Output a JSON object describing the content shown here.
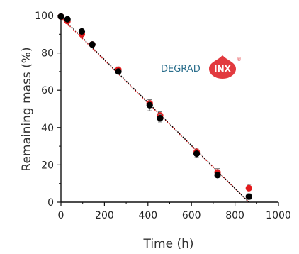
{
  "chart_data": {
    "type": "scatter",
    "xlabel": "Time (h)",
    "ylabel": "Remaining mass (%)",
    "xlim": [
      0,
      1000
    ],
    "ylim": [
      0,
      100
    ],
    "xticks": [
      0,
      200,
      400,
      600,
      800,
      1000
    ],
    "yticks": [
      0,
      20,
      40,
      60,
      80,
      100
    ],
    "grid": false,
    "series": [
      {
        "color": "#e31a1c",
        "x": [
          0,
          30,
          96,
          144,
          264,
          408,
          456,
          624,
          720,
          864
        ],
        "y": [
          99.5,
          97,
          90,
          84.5,
          71,
          53,
          46.5,
          27,
          16,
          7.5
        ],
        "yerr": [
          0.5,
          1,
          1,
          1,
          1.5,
          2,
          2,
          2,
          2,
          2
        ],
        "fit": [
          [
            0,
            99
          ],
          [
            864,
            0
          ]
        ]
      },
      {
        "color": "#000000",
        "x": [
          0,
          30,
          96,
          144,
          264,
          408,
          456,
          624,
          720,
          864
        ],
        "y": [
          99.5,
          98,
          91.5,
          84.5,
          70,
          52,
          45,
          26,
          14.5,
          3
        ],
        "yerr": [
          0.5,
          1,
          1,
          1,
          1,
          3,
          2,
          2,
          1,
          1.5
        ],
        "fit": [
          [
            0,
            99.5
          ],
          [
            864,
            0
          ]
        ]
      }
    ]
  },
  "logo": {
    "word": "DEGRAD",
    "badge": "INX",
    "mark": "®",
    "text_color": "#2a6e8c",
    "badge_color": "#e23a3f"
  }
}
